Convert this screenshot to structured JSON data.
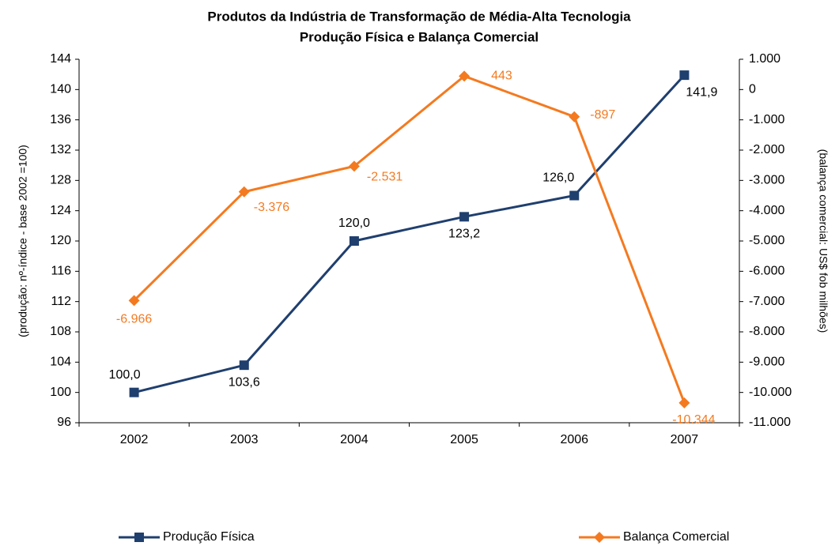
{
  "chart_data": {
    "type": "line",
    "title": "Produtos da Indústria de Transformação de Média-Alta Tecnologia",
    "subtitle": "Produção Física e Balança Comercial",
    "ylabel": "(produção: nº-índice - base 2002 =100)",
    "y2label": "(balança comercial: US$ fob milhões)",
    "categories": [
      "2002",
      "2003",
      "2004",
      "2005",
      "2006",
      "2007"
    ],
    "ylim": [
      96,
      144
    ],
    "yticks": [
      96,
      100,
      104,
      108,
      112,
      116,
      120,
      124,
      128,
      132,
      136,
      140,
      144
    ],
    "y2lim": [
      -11000,
      1000
    ],
    "y2ticks": [
      {
        "value": -11000,
        "label": "-11.000"
      },
      {
        "value": -10000,
        "label": "-10.000"
      },
      {
        "value": -9000,
        "label": "-9.000"
      },
      {
        "value": -8000,
        "label": "-8.000"
      },
      {
        "value": -7000,
        "label": "-7.000"
      },
      {
        "value": -6000,
        "label": "-6.000"
      },
      {
        "value": -5000,
        "label": "-5.000"
      },
      {
        "value": -4000,
        "label": "-4.000"
      },
      {
        "value": -3000,
        "label": "-3.000"
      },
      {
        "value": -2000,
        "label": "-2.000"
      },
      {
        "value": -1000,
        "label": "-1.000"
      },
      0,
      {
        "value": 1000,
        "label": "1.000"
      }
    ],
    "grid": false,
    "legend": "bottom",
    "series": [
      {
        "name": "Produção Física",
        "color": "#1f3f6e",
        "marker": "square",
        "values": [
          100,
          103.6,
          120,
          123.2,
          126,
          141.9
        ],
        "value_labels": [
          "100,0",
          "103,6",
          "120,0",
          "123,2",
          "126,0",
          "141,9"
        ]
      },
      {
        "name": "Balança Comercial",
        "color": "#f47a20",
        "marker": "diamond",
        "axis": "y2",
        "values": [
          -6966,
          -3376,
          -2531,
          443,
          -897,
          -10344
        ],
        "value_labels": [
          "-6.966",
          "-3.376",
          "-2.531",
          "443",
          "-897",
          "-10.344"
        ]
      }
    ]
  }
}
